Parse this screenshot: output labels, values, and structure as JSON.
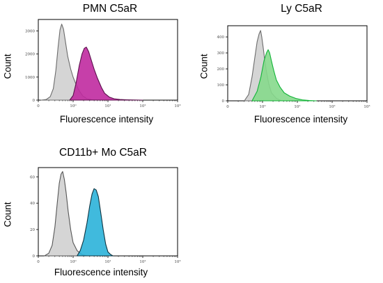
{
  "chart_data": [
    {
      "type": "area",
      "title": "PMN C5aR",
      "xlabel": "Fluorescence intensity",
      "ylabel": "Count",
      "x_scale": "log",
      "xlim": [
        0.1,
        1000
      ],
      "ylim": [
        0,
        3500
      ],
      "x_ticks": [
        "0",
        "10⁰",
        "10¹",
        "10²",
        "10³"
      ],
      "y_ticks": [
        "0",
        "1000",
        "2000",
        "3000"
      ],
      "series": [
        {
          "color": "#d3d3d3",
          "stroke": "#6b6b6b",
          "points": [
            [
              0.12,
              0
            ],
            [
              0.17,
              30
            ],
            [
              0.22,
              150
            ],
            [
              0.27,
              500
            ],
            [
              0.32,
              1300
            ],
            [
              0.37,
              2300
            ],
            [
              0.42,
              3050
            ],
            [
              0.47,
              3300
            ],
            [
              0.53,
              3080
            ],
            [
              0.6,
              2550
            ],
            [
              0.7,
              1900
            ],
            [
              0.85,
              1350
            ],
            [
              1.0,
              1000
            ],
            [
              1.2,
              700
            ],
            [
              1.5,
              400
            ],
            [
              1.9,
              180
            ],
            [
              2.5,
              60
            ],
            [
              3.5,
              10
            ],
            [
              5,
              0
            ]
          ]
        },
        {
          "color": "#c02aa0",
          "stroke": "#5a0f4c",
          "points": [
            [
              0.8,
              0
            ],
            [
              1.0,
              200
            ],
            [
              1.2,
              700
            ],
            [
              1.5,
              1500
            ],
            [
              1.8,
              2000
            ],
            [
              2.1,
              2250
            ],
            [
              2.4,
              2300
            ],
            [
              2.8,
              2100
            ],
            [
              3.3,
              1750
            ],
            [
              4,
              1350
            ],
            [
              5,
              950
            ],
            [
              6.5,
              550
            ],
            [
              8,
              300
            ],
            [
              11,
              130
            ],
            [
              15,
              60
            ],
            [
              22,
              30
            ],
            [
              35,
              15
            ],
            [
              60,
              5
            ],
            [
              100,
              0
            ]
          ]
        }
      ]
    },
    {
      "type": "area",
      "title": "Ly C5aR",
      "xlabel": "Fluorescence intensity",
      "ylabel": "Count",
      "x_scale": "log",
      "xlim": [
        0.1,
        1000
      ],
      "ylim": [
        0,
        470
      ],
      "x_ticks": [
        "0",
        "10⁰",
        "10¹",
        "10²",
        "10³"
      ],
      "y_ticks": [
        "0",
        "100",
        "200",
        "300",
        "400"
      ],
      "series": [
        {
          "color": "#d3d3d3",
          "stroke": "#6b6b6b",
          "points": [
            [
              0.3,
              0
            ],
            [
              0.4,
              40
            ],
            [
              0.5,
              150
            ],
            [
              0.6,
              270
            ],
            [
              0.7,
              370
            ],
            [
              0.8,
              420
            ],
            [
              0.88,
              440
            ],
            [
              0.95,
              400
            ],
            [
              1.05,
              330
            ],
            [
              1.15,
              260
            ],
            [
              1.3,
              180
            ],
            [
              1.5,
              110
            ],
            [
              1.8,
              50
            ],
            [
              2.5,
              15
            ],
            [
              3.5,
              0
            ]
          ]
        },
        {
          "color": "#86d98c",
          "stroke": "#10b436",
          "points": [
            [
              0.5,
              0
            ],
            [
              0.7,
              60
            ],
            [
              0.9,
              150
            ],
            [
              1.1,
              250
            ],
            [
              1.3,
              300
            ],
            [
              1.45,
              320
            ],
            [
              1.6,
              300
            ],
            [
              1.8,
              250
            ],
            [
              2.1,
              190
            ],
            [
              2.5,
              130
            ],
            [
              3.2,
              85
            ],
            [
              4.2,
              50
            ],
            [
              6,
              30
            ],
            [
              9,
              15
            ],
            [
              14,
              6
            ],
            [
              22,
              2
            ],
            [
              35,
              0
            ]
          ]
        }
      ]
    },
    {
      "type": "area",
      "title": "CD11b+ Mo C5aR",
      "xlabel": "Fluorescence intensity",
      "ylabel": "Count",
      "x_scale": "log",
      "xlim": [
        0.1,
        1000
      ],
      "ylim": [
        0,
        67
      ],
      "x_ticks": [
        "0",
        "10⁰",
        "10¹",
        "10²",
        "10³"
      ],
      "y_ticks": [
        "0",
        "20",
        "40",
        "60"
      ],
      "series": [
        {
          "color": "#d3d3d3",
          "stroke": "#555555",
          "points": [
            [
              0.15,
              0
            ],
            [
              0.2,
              2
            ],
            [
              0.25,
              8
            ],
            [
              0.3,
              22
            ],
            [
              0.35,
              40
            ],
            [
              0.4,
              55
            ],
            [
              0.45,
              62
            ],
            [
              0.5,
              64
            ],
            [
              0.56,
              58
            ],
            [
              0.63,
              48
            ],
            [
              0.72,
              34
            ],
            [
              0.85,
              20
            ],
            [
              1.0,
              10
            ],
            [
              1.3,
              4
            ],
            [
              1.8,
              1
            ],
            [
              2.5,
              0
            ]
          ]
        },
        {
          "color": "#2bb3d9",
          "stroke": "#0d3340",
          "points": [
            [
              1.3,
              0
            ],
            [
              1.6,
              4
            ],
            [
              2.0,
              12
            ],
            [
              2.5,
              25
            ],
            [
              3.0,
              38
            ],
            [
              3.5,
              47
            ],
            [
              4.0,
              51
            ],
            [
              4.6,
              50
            ],
            [
              5.3,
              45
            ],
            [
              6.2,
              33
            ],
            [
              7.3,
              20
            ],
            [
              8.6,
              9
            ],
            [
              10,
              3
            ],
            [
              12,
              1
            ],
            [
              14,
              0
            ]
          ]
        }
      ]
    }
  ]
}
